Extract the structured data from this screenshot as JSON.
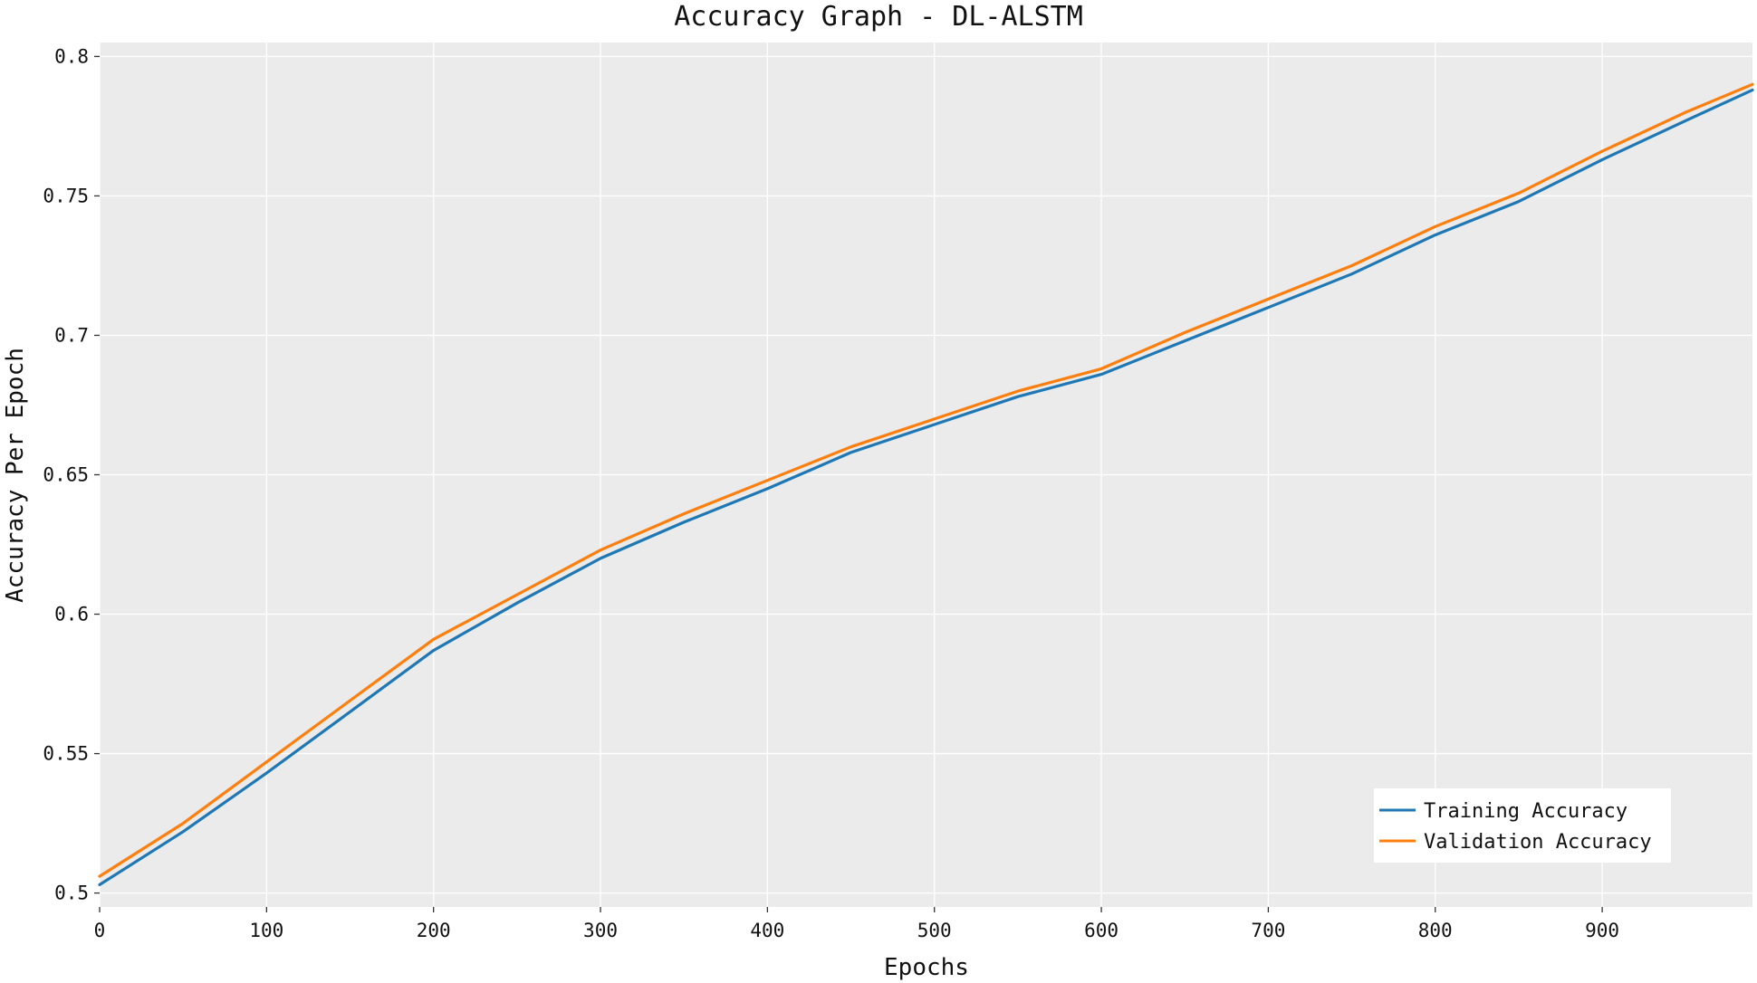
{
  "chart_data": {
    "type": "line",
    "title": "Accuracy Graph - DL-ALSTM",
    "xlabel": "Epochs",
    "ylabel": "Accuracy Per Epoch",
    "xlim": [
      0,
      990
    ],
    "ylim": [
      0.495,
      0.805
    ],
    "xticks": [
      0,
      100,
      200,
      300,
      400,
      500,
      600,
      700,
      800,
      900
    ],
    "xtick_labels": [
      "0",
      "100",
      "200",
      "300",
      "400",
      "500",
      "600",
      "700",
      "800",
      "900"
    ],
    "yticks": [
      0.5,
      0.55,
      0.6,
      0.65,
      0.7,
      0.75,
      0.8
    ],
    "ytick_labels": [
      "0.5",
      "0.55",
      "0.6",
      "0.65",
      "0.7",
      "0.75",
      "0.8"
    ],
    "grid": true,
    "legend_position": "bottom-right",
    "series": [
      {
        "name": "Training Accuracy",
        "color": "#1f77b4",
        "x": [
          0,
          50,
          100,
          150,
          200,
          250,
          300,
          350,
          400,
          450,
          500,
          550,
          600,
          650,
          700,
          750,
          800,
          850,
          900,
          950,
          990
        ],
        "y": [
          0.503,
          0.522,
          0.543,
          0.565,
          0.587,
          0.604,
          0.62,
          0.633,
          0.645,
          0.658,
          0.668,
          0.678,
          0.686,
          0.698,
          0.71,
          0.722,
          0.736,
          0.748,
          0.763,
          0.777,
          0.788
        ]
      },
      {
        "name": "Validation Accuracy",
        "color": "#ff7f0e",
        "x": [
          0,
          50,
          100,
          150,
          200,
          250,
          300,
          350,
          400,
          450,
          500,
          550,
          600,
          650,
          700,
          750,
          800,
          850,
          900,
          950,
          990
        ],
        "y": [
          0.506,
          0.525,
          0.547,
          0.569,
          0.591,
          0.607,
          0.623,
          0.636,
          0.648,
          0.66,
          0.67,
          0.68,
          0.688,
          0.701,
          0.713,
          0.725,
          0.739,
          0.751,
          0.766,
          0.78,
          0.79
        ]
      }
    ]
  },
  "colors": {
    "plot_background": "#ebebeb",
    "grid": "#ffffff"
  }
}
